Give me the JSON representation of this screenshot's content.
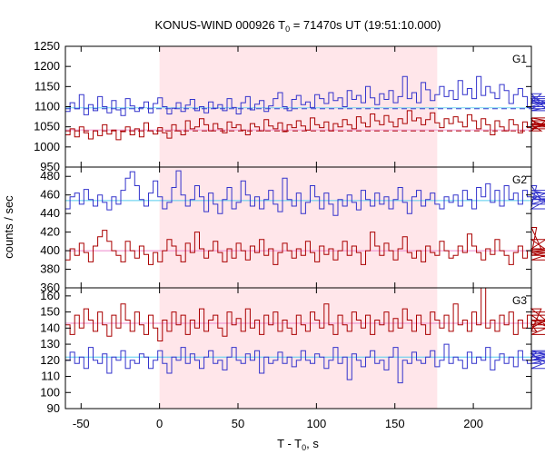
{
  "chart_data": {
    "type": "line",
    "title_main": "KONUS-WIND 000926 T",
    "title_sub": "0",
    "title_rest": " = 71470s UT (19:51:10.000)",
    "xlabel_main": "T - T",
    "xlabel_sub": "0",
    "xlabel_rest": ", s",
    "ylabel": "counts / sec",
    "xlim": [
      -60,
      237
    ],
    "x_ticks": [
      "-50",
      "0",
      "50",
      "100",
      "150",
      "200"
    ],
    "x_tick_values": [
      -50,
      0,
      50,
      100,
      150,
      200
    ],
    "highlight_interval": [
      0,
      177
    ],
    "bin_width": 2.944,
    "x_start": -60,
    "colors": {
      "blue": "#3333cc",
      "red": "#aa0000",
      "blue_bg": "#55ccee",
      "red_bg": "#ee88cc",
      "highlight": "#ffe6ea"
    },
    "panels": [
      {
        "name": "G1",
        "ylim": [
          950,
          1250
        ],
        "y_ticks": [
          "950",
          "1000",
          "1050",
          "1100",
          "1150",
          "1200",
          "1250"
        ],
        "y_tick_values": [
          950,
          1000,
          1050,
          1100,
          1150,
          1200,
          1250
        ],
        "background_levels": [
          1095,
          1040
        ],
        "series": [
          {
            "color_key": "blue",
            "values": [
              1088,
              1110,
              1095,
              1130,
              1080,
              1105,
              1090,
              1125,
              1100,
              1085,
              1115,
              1092,
              1078,
              1120,
              1102,
              1088,
              1098,
              1112,
              1085,
              1108,
              1122,
              1100,
              1082,
              1096,
              1110,
              1088,
              1104,
              1118,
              1090,
              1100,
              1085,
              1112,
              1096,
              1105,
              1090,
              1120,
              1098,
              1082,
              1110,
              1125,
              1092,
              1106,
              1115,
              1088,
              1102,
              1120,
              1135,
              1100,
              1090,
              1118,
              1128,
              1105,
              1112,
              1098,
              1130,
              1120,
              1108,
              1135,
              1115,
              1122,
              1100,
              1140,
              1118,
              1128,
              1110,
              1150,
              1122,
              1105,
              1132,
              1118,
              1140,
              1110,
              1125,
              1175,
              1120,
              1135,
              1110,
              1160,
              1142,
              1115,
              1130,
              1150,
              1125,
              1140,
              1118,
              1165,
              1130,
              1145,
              1120,
              1175,
              1128,
              1150,
              1135,
              1120,
              1155,
              1140,
              1108,
              1130,
              1145,
              1125,
              1098,
              1120,
              1110,
              1132,
              1095,
              1115,
              1100,
              1125,
              1090,
              1108,
              1120
            ]
          },
          {
            "color_key": "red",
            "values": [
              1030,
              1045,
              1025,
              1050,
              1035,
              1020,
              1040,
              1028,
              1055,
              1032,
              1042,
              1018,
              1038,
              1050,
              1030,
              1045,
              1025,
              1060,
              1040,
              1032,
              1048,
              1035,
              1022,
              1055,
              1040,
              1030,
              1065,
              1045,
              1050,
              1070,
              1055,
              1040,
              1058,
              1045,
              1035,
              1062,
              1048,
              1055,
              1042,
              1030,
              1058,
              1050,
              1040,
              1068,
              1052,
              1045,
              1060,
              1038,
              1055,
              1048,
              1065,
              1052,
              1042,
              1072,
              1055,
              1048,
              1062,
              1040,
              1058,
              1050,
              1068,
              1055,
              1045,
              1075,
              1060,
              1050,
              1082,
              1065,
              1055,
              1078,
              1062,
              1050,
              1070,
              1058,
              1090,
              1065,
              1072,
              1055,
              1068,
              1085,
              1060,
              1048,
              1070,
              1058,
              1075,
              1062,
              1050,
              1080,
              1065,
              1045,
              1070,
              1055,
              1030,
              1065,
              1050,
              1040,
              1068,
              1055,
              1035,
              1062,
              1048,
              1070,
              1055,
              1040,
              1065,
              1050,
              1058,
              1045,
              1072,
              1055,
              1065
            ]
          }
        ]
      },
      {
        "name": "G2",
        "ylim": [
          360,
          490
        ],
        "y_ticks": [
          "360",
          "380",
          "400",
          "420",
          "440",
          "460",
          "480"
        ],
        "y_tick_values": [
          360,
          380,
          400,
          420,
          440,
          460,
          480
        ],
        "background_levels": [
          454,
          400
        ],
        "series": [
          {
            "color_key": "blue",
            "values": [
              445,
              458,
              462,
              450,
              466,
              455,
              448,
              460,
              452,
              444,
              458,
              450,
              465,
              478,
              485,
              470,
              455,
              448,
              462,
              475,
              458,
              445,
              452,
              468,
              486,
              460,
              448,
              455,
              470,
              458,
              442,
              462,
              450,
              440,
              455,
              468,
              445,
              452,
              475,
              460,
              448,
              458,
              445,
              455,
              465,
              450,
              442,
              478,
              455,
              448,
              462,
              440,
              452,
              470,
              458,
              445,
              462,
              450,
              438,
              455,
              448,
              460,
              452,
              444,
              465,
              455,
              448,
              462,
              450,
              458,
              445,
              455,
              468,
              452,
              440,
              458,
              465,
              448,
              455,
              462,
              450,
              445,
              458,
              452,
              460,
              448,
              465,
              455,
              445,
              468,
              458,
              472,
              452,
              465,
              448,
              470,
              455,
              462,
              450,
              465,
              458,
              448,
              470,
              455,
              462,
              450,
              458,
              445,
              465,
              455,
              458
            ]
          },
          {
            "color_key": "red",
            "values": [
              390,
              402,
              395,
              408,
              398,
              388,
              405,
              415,
              422,
              410,
              400,
              395,
              388,
              410,
              400,
              392,
              405,
              396,
              385,
              398,
              388,
              400,
              412,
              405,
              395,
              388,
              408,
              398,
              420,
              402,
              392,
              400,
              410,
              398,
              388,
              402,
              392,
              408,
              400,
              390,
              405,
              398,
              412,
              395,
              402,
              385,
              398,
              408,
              400,
              392,
              402,
              395,
              410,
              398,
              388,
              405,
              396,
              402,
              390,
              400,
              410,
              395,
              405,
              398,
              385,
              400,
              420,
              405,
              395,
              408,
              400,
              390,
              402,
              415,
              398,
              392,
              400,
              388,
              405,
              398,
              395,
              410,
              400,
              392,
              395,
              405,
              398,
              418,
              405,
              398,
              390,
              402,
              396,
              412,
              400,
              395,
              385,
              398,
              405,
              392,
              400,
              395,
              425,
              402,
              412,
              398,
              390,
              400,
              395,
              402,
              398
            ]
          }
        ]
      },
      {
        "name": "G3",
        "ylim": [
          90,
          165
        ],
        "y_ticks": [
          "90",
          "100",
          "110",
          "120",
          "130",
          "140",
          "150",
          "160"
        ],
        "y_tick_values": [
          90,
          100,
          110,
          120,
          130,
          140,
          150,
          160
        ],
        "background_levels": [
          122,
          143
        ],
        "series": [
          {
            "color_key": "blue",
            "values": [
              120,
              125,
              118,
              122,
              115,
              128,
              120,
              118,
              124,
              112,
              122,
              120,
              126,
              115,
              120,
              118,
              124,
              122,
              115,
              120,
              126,
              118,
              112,
              122,
              120,
              128,
              118,
              124,
              120,
              115,
              122,
              126,
              118,
              120,
              114,
              122,
              128,
              120,
              118,
              124,
              120,
              126,
              112,
              122,
              118,
              120,
              125,
              118,
              122,
              116,
              120,
              126,
              120,
              118,
              124,
              122,
              115,
              120,
              128,
              118,
              122,
              108,
              124,
              120,
              116,
              122,
              126,
              118,
              120,
              114,
              122,
              128,
              106,
              120,
              118,
              125,
              120,
              118,
              122,
              126,
              116,
              120,
              130,
              118,
              122,
              120,
              115,
              125,
              118,
              122,
              120,
              128,
              114,
              120,
              124,
              118,
              122,
              116,
              126,
              120,
              118,
              122,
              125,
              118,
              120,
              124,
              115,
              122,
              126,
              120,
              125
            ]
          },
          {
            "color_key": "red",
            "values": [
              142,
              136,
              148,
              140,
              152,
              145,
              138,
              150,
              142,
              135,
              148,
              140,
              155,
              145,
              138,
              150,
              142,
              136,
              148,
              140,
              132,
              145,
              138,
              150,
              142,
              148,
              136,
              145,
              140,
              152,
              138,
              145,
              148,
              140,
              135,
              150,
              142,
              146,
              138,
              152,
              140,
              145,
              136,
              148,
              142,
              150,
              138,
              145,
              140,
              136,
              148,
              142,
              138,
              150,
              145,
              140,
              155,
              142,
              136,
              148,
              142,
              138,
              150,
              145,
              140,
              148,
              136,
              145,
              142,
              150,
              138,
              146,
              140,
              152,
              145,
              138,
              148,
              142,
              136,
              150,
              145,
              140,
              148,
              138,
              155,
              142,
              145,
              138,
              150,
              142,
              165,
              140,
              145,
              138,
              148,
              142,
              150,
              136,
              145,
              140,
              148,
              142,
              138,
              152,
              145,
              140,
              148,
              136,
              145,
              142,
              150
            ]
          }
        ]
      }
    ]
  }
}
